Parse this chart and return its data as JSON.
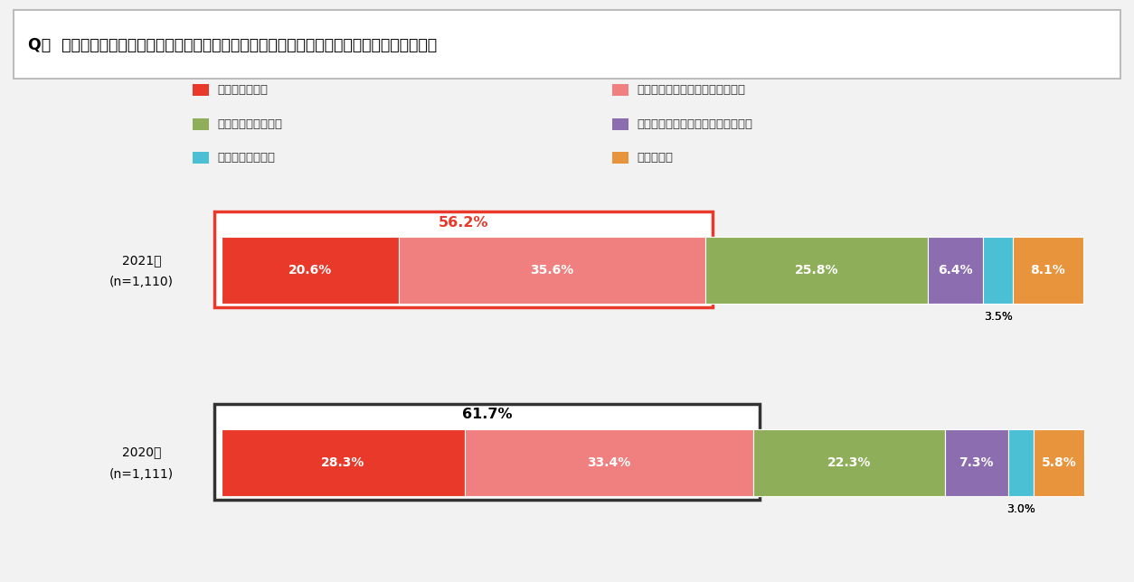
{
  "title": "Q１  近い将来、現在あなたがお住まいの地域で大地震が発生すると思いますか。【単数回答】",
  "categories": [
    "発生すると思う",
    "どちらかといえば発生すると思う",
    "どちらともいえない",
    "どちらかといえば発生しないと思う",
    "発生しないと思う",
    "わからない"
  ],
  "colors": [
    "#e8392a",
    "#f08080",
    "#8fae5a",
    "#8b6db0",
    "#4bbfd4",
    "#e8943c"
  ],
  "values_2021": [
    20.6,
    35.6,
    25.8,
    6.4,
    3.5,
    8.1
  ],
  "values_2020": [
    28.3,
    33.4,
    22.3,
    7.3,
    3.0,
    5.8
  ],
  "combined_2021": 56.2,
  "combined_2020": 61.7,
  "box_color_2021": "#e8392a",
  "box_color_2020": "#333333",
  "bg_color": "#f2f2f2",
  "title_bg": "#ffffff",
  "legend_items": [
    {
      "label": "発生すると思う",
      "color": "#e8392a"
    },
    {
      "label": "どちらかといえば発生すると思う",
      "color": "#f08080"
    },
    {
      "label": "どちらともいえない",
      "color": "#8fae5a"
    },
    {
      "label": "どちらかといえば発生しないと思う",
      "color": "#8b6db0"
    },
    {
      "label": "発生しないと思う",
      "color": "#4bbfd4"
    },
    {
      "label": "わからない",
      "color": "#e8943c"
    }
  ]
}
